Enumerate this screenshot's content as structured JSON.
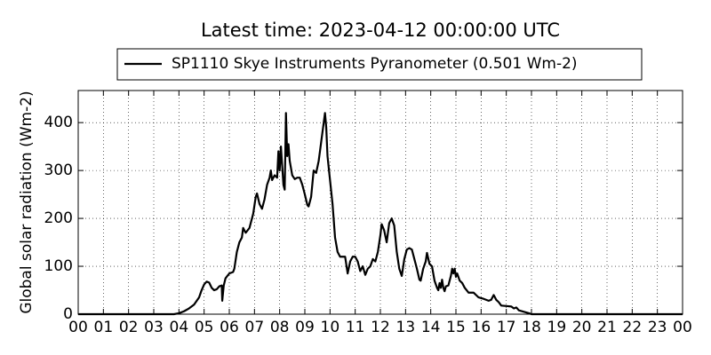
{
  "chart_data": {
    "type": "line",
    "title": "Latest time: 2023-04-12 00:00:00 UTC",
    "ylabel": "Global solar radiation (Wm-2)",
    "series": [
      {
        "name": "SP1110 Skye Instruments Pyranometer (0.501 Wm-2)",
        "color": "#000000",
        "x": [
          0,
          3.8,
          4.0,
          4.2,
          4.4,
          4.6,
          4.8,
          4.9,
          5.0,
          5.1,
          5.2,
          5.3,
          5.4,
          5.5,
          5.6,
          5.7,
          5.72,
          5.78,
          5.85,
          6.0,
          6.15,
          6.2,
          6.3,
          6.4,
          6.5,
          6.55,
          6.65,
          6.8,
          6.95,
          7.05,
          7.1,
          7.2,
          7.3,
          7.4,
          7.5,
          7.6,
          7.65,
          7.7,
          7.8,
          7.9,
          7.95,
          8.0,
          8.05,
          8.1,
          8.15,
          8.2,
          8.25,
          8.3,
          8.35,
          8.4,
          8.5,
          8.6,
          8.7,
          8.8,
          8.9,
          9.0,
          9.1,
          9.15,
          9.25,
          9.35,
          9.45,
          9.55,
          9.65,
          9.75,
          9.8,
          9.85,
          9.9,
          10.0,
          10.1,
          10.2,
          10.3,
          10.4,
          10.5,
          10.6,
          10.7,
          10.8,
          10.9,
          11.0,
          11.1,
          11.2,
          11.3,
          11.4,
          11.5,
          11.6,
          11.7,
          11.8,
          11.9,
          12.0,
          12.05,
          12.15,
          12.25,
          12.35,
          12.45,
          12.55,
          12.65,
          12.75,
          12.85,
          12.95,
          13.05,
          13.15,
          13.25,
          13.35,
          13.45,
          13.55,
          13.6,
          13.7,
          13.8,
          13.85,
          13.95,
          14.05,
          14.15,
          14.25,
          14.3,
          14.35,
          14.4,
          14.45,
          14.5,
          14.55,
          14.6,
          14.7,
          14.8,
          14.85,
          14.9,
          14.95,
          15.0,
          15.05,
          15.15,
          15.25,
          15.35,
          15.5,
          15.7,
          15.9,
          16.1,
          16.3,
          16.4,
          16.5,
          16.6,
          16.7,
          16.8,
          17.0,
          17.2,
          17.3,
          17.4,
          17.5,
          17.7,
          17.9,
          18.0,
          24
        ],
        "values": [
          0,
          0,
          2,
          6,
          12,
          20,
          35,
          50,
          62,
          68,
          66,
          55,
          50,
          52,
          58,
          60,
          28,
          60,
          75,
          85,
          88,
          95,
          130,
          150,
          160,
          180,
          170,
          180,
          210,
          245,
          252,
          230,
          220,
          240,
          270,
          285,
          300,
          280,
          290,
          285,
          340,
          300,
          350,
          310,
          270,
          260,
          420,
          330,
          355,
          320,
          290,
          282,
          285,
          285,
          270,
          250,
          228,
          225,
          245,
          300,
          295,
          320,
          360,
          400,
          420,
          390,
          330,
          280,
          230,
          160,
          130,
          120,
          120,
          120,
          85,
          110,
          120,
          120,
          110,
          90,
          100,
          82,
          95,
          100,
          115,
          110,
          130,
          165,
          188,
          175,
          150,
          190,
          200,
          185,
          130,
          95,
          80,
          115,
          135,
          138,
          135,
          115,
          95,
          72,
          70,
          95,
          110,
          128,
          105,
          100,
          70,
          55,
          50,
          65,
          55,
          72,
          55,
          48,
          58,
          60,
          80,
          95,
          85,
          95,
          78,
          85,
          70,
          65,
          55,
          45,
          45,
          35,
          32,
          28,
          30,
          40,
          30,
          25,
          18,
          17,
          16,
          12,
          14,
          8,
          5,
          2,
          0,
          0
        ]
      }
    ],
    "xlim": [
      0,
      24
    ],
    "xticks": [
      {
        "value": 0,
        "label": "00"
      },
      {
        "value": 1,
        "label": "01"
      },
      {
        "value": 2,
        "label": "02"
      },
      {
        "value": 3,
        "label": "03"
      },
      {
        "value": 4,
        "label": "04"
      },
      {
        "value": 5,
        "label": "05"
      },
      {
        "value": 6,
        "label": "06"
      },
      {
        "value": 7,
        "label": "07"
      },
      {
        "value": 8,
        "label": "08"
      },
      {
        "value": 9,
        "label": "09"
      },
      {
        "value": 10,
        "label": "10"
      },
      {
        "value": 11,
        "label": "11"
      },
      {
        "value": 12,
        "label": "12"
      },
      {
        "value": 13,
        "label": "13"
      },
      {
        "value": 14,
        "label": "14"
      },
      {
        "value": 15,
        "label": "15"
      },
      {
        "value": 16,
        "label": "16"
      },
      {
        "value": 17,
        "label": "17"
      },
      {
        "value": 18,
        "label": "18"
      },
      {
        "value": 19,
        "label": "19"
      },
      {
        "value": 20,
        "label": "20"
      },
      {
        "value": 21,
        "label": "21"
      },
      {
        "value": 22,
        "label": "22"
      },
      {
        "value": 23,
        "label": "23"
      },
      {
        "value": 24,
        "label": "00"
      }
    ],
    "ylim": [
      0,
      467
    ],
    "yticks": [
      0,
      100,
      200,
      300,
      400
    ],
    "grid": true,
    "legend": "top"
  }
}
